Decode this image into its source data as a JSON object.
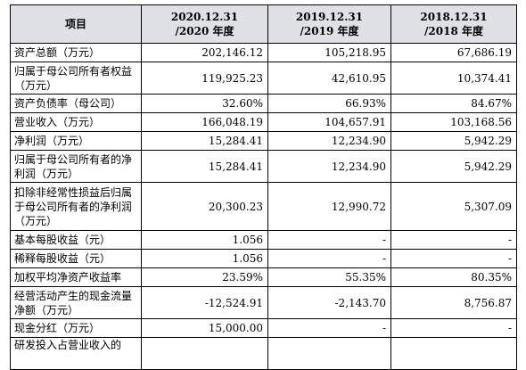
{
  "headers": [
    "项目",
    "2020.12.31\n/2020 年度",
    "2019.12.31\n/2019 年度",
    "2018.12.31\n/2018 年度"
  ],
  "rows": [
    {
      "label": "资产总额（万元）",
      "v": [
        "202,146.12",
        "105,218.95",
        "67,686.19"
      ]
    },
    {
      "label": "归属于母公司所有者权益（万元）",
      "v": [
        "119,925.23",
        "42,610.95",
        "10,374.41"
      ]
    },
    {
      "label": "资产负债率（母公司）",
      "v": [
        "32.60%",
        "66.93%",
        "84.67%"
      ]
    },
    {
      "label": "营业收入（万元）",
      "v": [
        "166,048.19",
        "104,657.91",
        "103,168.56"
      ]
    },
    {
      "label": "净利润（万元）",
      "v": [
        "15,284.41",
        "12,234.90",
        "5,942.29"
      ]
    },
    {
      "label": "归属于母公司所有者的净利润（万元）",
      "v": [
        "15,284.41",
        "12,234.90",
        "5,942.29"
      ]
    },
    {
      "label": "扣除非经常性损益后归属于母公司所有者的净利润（万元）",
      "v": [
        "20,300.23",
        "12,990.72",
        "5,307.09"
      ]
    },
    {
      "label": "基本每股收益（元）",
      "v": [
        "1.056",
        "-",
        "-"
      ]
    },
    {
      "label": "稀释每股收益（元）",
      "v": [
        "1.056",
        "-",
        "-"
      ]
    },
    {
      "label": "加权平均净资产收益率",
      "v": [
        "23.59%",
        "55.35%",
        "80.35%"
      ]
    },
    {
      "label": "经营活动产生的现金流量净额（万元）",
      "v": [
        "-12,524.91",
        "-2,143.70",
        "8,756.87"
      ]
    },
    {
      "label": "现金分红（万元）",
      "v": [
        "15,000.00",
        "-",
        "-"
      ]
    },
    {
      "label": "研发投入占营业收入的",
      "v": [
        "",
        "",
        ""
      ]
    }
  ]
}
